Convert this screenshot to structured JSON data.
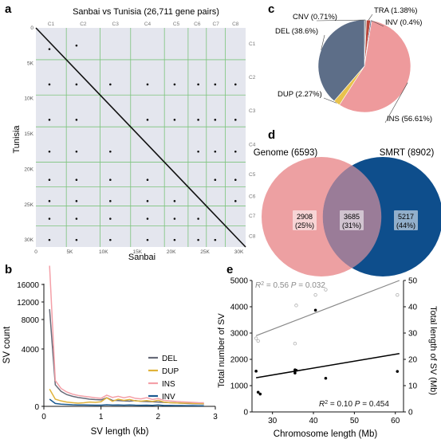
{
  "panel_letters": [
    "a",
    "b",
    "c",
    "d",
    "e"
  ],
  "chart_data": [
    {
      "id": "a",
      "type": "scatter",
      "title": "Sanbai vs Tunisia (26,711 gene pairs)",
      "xlabel": "Sanbai",
      "ylabel": "Tunisia",
      "xlim": [
        0,
        31000
      ],
      "ylim": [
        0,
        31000
      ],
      "x_ticks": [
        {
          "label": "0",
          "value": 0
        },
        {
          "label": "5K",
          "value": 5000
        },
        {
          "label": "10K",
          "value": 10000
        },
        {
          "label": "15K",
          "value": 15000
        },
        {
          "label": "20K",
          "value": 20000
        },
        {
          "label": "25K",
          "value": 25000
        },
        {
          "label": "30K",
          "value": 30000
        }
      ],
      "y_ticks": [
        {
          "label": "0",
          "value": 0
        },
        {
          "label": "5K",
          "value": 5000
        },
        {
          "label": "10K",
          "value": 10000
        },
        {
          "label": "15K",
          "value": 15000
        },
        {
          "label": "20K",
          "value": 20000
        },
        {
          "label": "25K",
          "value": 25000
        },
        {
          "label": "30K",
          "value": 30000
        }
      ],
      "chromosomes": [
        "C1",
        "C2",
        "C3",
        "C4",
        "C5",
        "C6",
        "C7",
        "C8"
      ],
      "chrom_bounds": [
        0,
        4500,
        9500,
        14000,
        19000,
        22500,
        25200,
        28000,
        31000
      ],
      "diagonal": [
        [
          0,
          0
        ],
        [
          31000,
          31000
        ]
      ],
      "off_diagonal_clusters": [
        {
          "x": 2000,
          "y": 3000
        },
        {
          "x": 6000,
          "y": 2500
        },
        {
          "x": 2000,
          "y": 8000
        },
        {
          "x": 6000,
          "y": 8000
        },
        {
          "x": 11000,
          "y": 8000
        },
        {
          "x": 16500,
          "y": 8000
        },
        {
          "x": 20500,
          "y": 8000
        },
        {
          "x": 24000,
          "y": 8000
        },
        {
          "x": 26500,
          "y": 8000
        },
        {
          "x": 29500,
          "y": 8000
        },
        {
          "x": 2000,
          "y": 13000
        },
        {
          "x": 6000,
          "y": 13000
        },
        {
          "x": 16500,
          "y": 13000
        },
        {
          "x": 20500,
          "y": 13000
        },
        {
          "x": 24000,
          "y": 13000
        },
        {
          "x": 26500,
          "y": 13000
        },
        {
          "x": 29500,
          "y": 13000
        },
        {
          "x": 2000,
          "y": 17500
        },
        {
          "x": 6000,
          "y": 17500
        },
        {
          "x": 11000,
          "y": 17500
        },
        {
          "x": 24000,
          "y": 17500
        },
        {
          "x": 26500,
          "y": 17500
        },
        {
          "x": 29500,
          "y": 17500
        },
        {
          "x": 2000,
          "y": 21500
        },
        {
          "x": 6000,
          "y": 21500
        },
        {
          "x": 11000,
          "y": 21500
        },
        {
          "x": 16500,
          "y": 21500
        },
        {
          "x": 26500,
          "y": 21500
        },
        {
          "x": 29500,
          "y": 21500
        },
        {
          "x": 2000,
          "y": 24500
        },
        {
          "x": 6000,
          "y": 24500
        },
        {
          "x": 11000,
          "y": 24500
        },
        {
          "x": 16500,
          "y": 24500
        },
        {
          "x": 20500,
          "y": 24500
        },
        {
          "x": 29500,
          "y": 24500
        },
        {
          "x": 2000,
          "y": 27000
        },
        {
          "x": 6000,
          "y": 27000
        },
        {
          "x": 11000,
          "y": 27000
        },
        {
          "x": 16500,
          "y": 27000
        },
        {
          "x": 20500,
          "y": 27000
        },
        {
          "x": 24000,
          "y": 27000
        },
        {
          "x": 2000,
          "y": 30000
        },
        {
          "x": 6000,
          "y": 30000
        },
        {
          "x": 11000,
          "y": 30000
        },
        {
          "x": 16500,
          "y": 30000
        },
        {
          "x": 20500,
          "y": 30000
        },
        {
          "x": 24000,
          "y": 30000
        },
        {
          "x": 26500,
          "y": 30000
        }
      ],
      "colors": {
        "background": "#e4e6ee",
        "grid": "#7cc47c",
        "points": "#111111"
      }
    },
    {
      "id": "b",
      "type": "line",
      "xlabel": "SV length (kb)",
      "ylabel": "SV count",
      "xlim": [
        0,
        3
      ],
      "x_ticks": [
        0,
        1,
        2,
        3
      ],
      "y_ticks_labels": [
        "0",
        "4000",
        "8000",
        "12000",
        "16000"
      ],
      "x": [
        0.1,
        0.2,
        0.3,
        0.4,
        0.5,
        0.6,
        0.7,
        0.8,
        0.9,
        1.0,
        1.1,
        1.2,
        1.3,
        1.4,
        1.5,
        1.6,
        1.7,
        1.8,
        1.9,
        2.0,
        2.1,
        2.2,
        2.3,
        2.4,
        2.5,
        2.6,
        2.7,
        2.8
      ],
      "series": [
        {
          "name": "DEL",
          "color": "#666a78",
          "values": [
            9400,
            1500,
            1050,
            820,
            700,
            620,
            560,
            500,
            470,
            450,
            600,
            420,
            400,
            380,
            360,
            400,
            350,
            330,
            320,
            300,
            280,
            260,
            240,
            220,
            200,
            190,
            180,
            170
          ]
        },
        {
          "name": "DUP",
          "color": "#e0b23a",
          "values": [
            1200,
            500,
            380,
            300,
            260,
            220,
            250,
            300,
            280,
            320,
            600,
            350,
            500,
            420,
            480,
            380,
            360,
            400,
            340,
            420,
            300,
            260,
            240,
            220,
            230,
            210,
            200,
            190
          ]
        },
        {
          "name": "INS",
          "color": "#f4a0a8",
          "values": [
            15300,
            1800,
            1250,
            1000,
            850,
            760,
            700,
            650,
            600,
            560,
            780,
            620,
            700,
            600,
            680,
            560,
            520,
            600,
            480,
            550,
            420,
            380,
            350,
            320,
            300,
            280,
            260,
            250
          ]
        },
        {
          "name": "INV",
          "color": "#1a5a90",
          "values": [
            500,
            200,
            150,
            130,
            110,
            100,
            95,
            90,
            85,
            80,
            110,
            90,
            100,
            85,
            95,
            80,
            75,
            85,
            70,
            100,
            65,
            60,
            55,
            55,
            50,
            48,
            45,
            42
          ]
        }
      ]
    },
    {
      "id": "c",
      "type": "pie",
      "labels": [
        "CNV (0.71%)",
        "TRA (1.38%)",
        "INV (0.4%)",
        "INS (56.61%)",
        "DUP (2.27%)",
        "DEL (38.6%)"
      ],
      "values": [
        0.71,
        1.38,
        0.4,
        56.61,
        2.27,
        38.6
      ],
      "colors": [
        "#9e9e9e",
        "#b8453a",
        "#2e4f80",
        "#ee9a9c",
        "#e8c24c",
        "#5d6e88"
      ]
    },
    {
      "id": "d",
      "type": "venn",
      "sets": [
        {
          "label": "Genome (6593)",
          "only": "2908",
          "only_pct": "(25%)",
          "color": "#eda0a2"
        },
        {
          "label": "SMRT (8902)",
          "only": "5217",
          "only_pct": "(44%)",
          "color": "#0e4e8c"
        }
      ],
      "overlap": {
        "value": "3685",
        "pct": "(31%)",
        "color": "#9a7c98"
      }
    },
    {
      "id": "e",
      "type": "scatter",
      "xlabel": "Chromosome length (Mb)",
      "ylabel_left": "Total number of SV",
      "ylabel_right": "Total length of SV (Mb)",
      "xlim": [
        25,
        62
      ],
      "ylim_left": [
        0,
        5000
      ],
      "ylim_right": [
        0,
        50
      ],
      "x_ticks": [
        30,
        40,
        50,
        60
      ],
      "y_ticks_left": [
        0,
        1000,
        2000,
        3000,
        4000,
        5000
      ],
      "y_ticks_right": [
        0,
        10,
        20,
        30,
        40,
        50
      ],
      "series": [
        {
          "name": "Total number of SV",
          "axis": "left",
          "color": "#000000",
          "x": [
            26,
            26.5,
            27,
            35.5,
            35.5,
            35.8,
            40.5,
            43,
            60.5
          ],
          "y": [
            1550,
            750,
            680,
            1480,
            1600,
            1580,
            3870,
            1280,
            1540
          ],
          "fit": {
            "x": [
              26,
              61
            ],
            "y": [
              1300,
              2220
            ]
          }
        },
        {
          "name": "Total length of SV (Mb)",
          "axis": "right",
          "color": "#888888",
          "x": [
            26,
            26.5,
            35.5,
            35.8,
            40.5,
            43,
            60.5
          ],
          "y": [
            28,
            27,
            26,
            40.5,
            44.5,
            46.5,
            44.5
          ],
          "fit": {
            "x": [
              26,
              61
            ],
            "y": [
              29,
              50
            ]
          }
        }
      ],
      "stats_top": {
        "r2_label": "R",
        "r2_exp": "2",
        "r2_val": " = 0.56",
        "p_label": "P",
        "p_val": " = 0.032"
      },
      "stats_bottom": {
        "r2_label": "R",
        "r2_exp": "2",
        "r2_val": " = 0.10",
        "p_label": "P",
        "p_val": " = 0.454"
      }
    }
  ]
}
